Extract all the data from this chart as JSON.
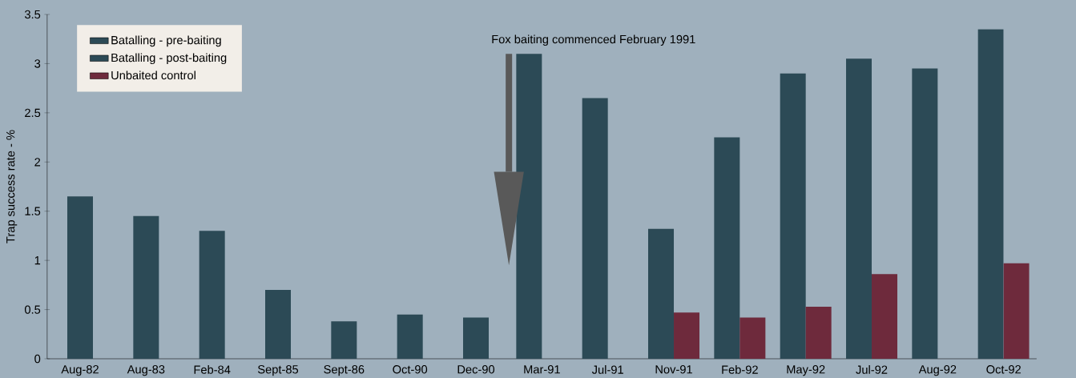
{
  "chart_data": {
    "type": "bar",
    "ylabel": "Trap success rate - %",
    "categories": [
      "Aug-82",
      "Aug-83",
      "Feb-84",
      "Sept-85",
      "Sept-86",
      "Oct-90",
      "Dec-90",
      "Mar-91",
      "Jul-91",
      "Nov-91",
      "Feb-92",
      "May-92",
      "Jul-92",
      "Aug-92",
      "Oct-92"
    ],
    "series": [
      {
        "name": "Batalling - pre-baiting",
        "color": "#2c4a56",
        "values": [
          1.65,
          1.45,
          1.3,
          0.7,
          0.38,
          0.45,
          0.42,
          null,
          null,
          null,
          null,
          null,
          null,
          null,
          null
        ]
      },
      {
        "name": "Batalling - post-baiting",
        "color": "#2c4a56",
        "values": [
          null,
          null,
          null,
          null,
          null,
          null,
          null,
          3.1,
          2.65,
          1.32,
          2.25,
          2.9,
          3.05,
          2.95,
          3.35
        ]
      },
      {
        "name": "Unbaited control",
        "color": "#6e2a3c",
        "values": [
          null,
          null,
          null,
          null,
          null,
          null,
          null,
          null,
          null,
          0.47,
          0.42,
          0.53,
          0.86,
          null,
          0.97
        ]
      }
    ],
    "ylim": [
      0,
      3.5
    ],
    "yticks": [
      0,
      0.5,
      1,
      1.5,
      2,
      2.5,
      3,
      3.5
    ],
    "legend": "top left",
    "annotations": [
      "Fox baiting commenced February 1991"
    ]
  }
}
